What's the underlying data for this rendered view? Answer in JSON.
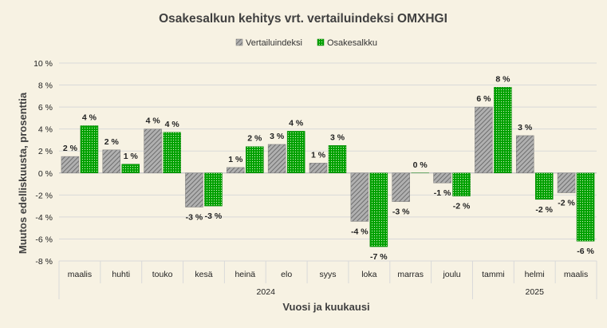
{
  "chart_data": {
    "type": "bar",
    "title": "Osakesalkun kehitys vrt. vertailuindeksi OMXHGI",
    "xlabel": "Vuosi ja kuukausi",
    "ylabel": "Muutos edelliskuusta, prosenttia",
    "ylim": [
      -8,
      10
    ],
    "ytick_step": 2,
    "ytick_labels": [
      "-8 %",
      "-6 %",
      "-4 %",
      "-2 %",
      "0 %",
      "2 %",
      "4 %",
      "6 %",
      "8 %",
      "10 %"
    ],
    "categories": [
      "maalis",
      "huhti",
      "touko",
      "kesä",
      "heinä",
      "elo",
      "syys",
      "loka",
      "marras",
      "joulu",
      "tammi",
      "helmi",
      "maalis"
    ],
    "year_groups": [
      {
        "label": "2024",
        "start": 0,
        "end": 9
      },
      {
        "label": "2025",
        "start": 10,
        "end": 12
      }
    ],
    "legend_position": "top",
    "series": [
      {
        "name": "Vertailuindeksi",
        "color": "#8c8c8c",
        "pattern": "diagonal-stripes",
        "values": [
          1.5,
          2.1,
          4.0,
          -3.1,
          0.5,
          2.6,
          0.9,
          -4.4,
          -2.6,
          -0.9,
          6.0,
          3.4,
          -1.8
        ],
        "labels": [
          "2 %",
          "2 %",
          "4 %",
          "-3 %",
          "1 %",
          "3 %",
          "1 %",
          "-4 %",
          "-3 %",
          "-1 %",
          "6 %",
          "3 %",
          "-2 %"
        ]
      },
      {
        "name": "Osakesalkku",
        "color": "#00a000",
        "pattern": "dots",
        "values": [
          4.3,
          0.8,
          3.7,
          -3.0,
          2.4,
          3.8,
          2.5,
          -6.7,
          0.0,
          -2.1,
          7.8,
          -2.4,
          -6.2
        ],
        "labels": [
          "4 %",
          "1 %",
          "4 %",
          "-3 %",
          "2 %",
          "4 %",
          "3 %",
          "-7 %",
          "0 %",
          "-2 %",
          "8 %",
          "-2 %",
          "-6 %"
        ]
      }
    ]
  }
}
